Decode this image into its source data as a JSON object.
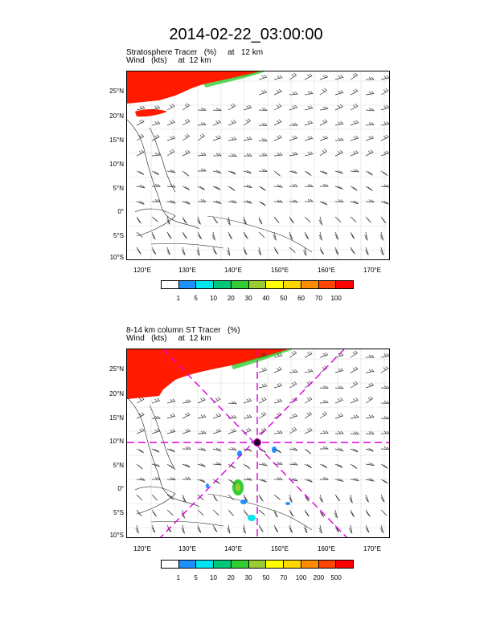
{
  "title": "2014-02-22_03:00:00",
  "panel1": {
    "line1": "Stratosphere Tracer   (%)     at   12 km",
    "line2": "Wind   (kts)     at  12 km",
    "colorbar": {
      "labels": [
        "1",
        "5",
        "10",
        "20",
        "30",
        "40",
        "50",
        "60",
        "70",
        "100"
      ],
      "colors": [
        "#ffffff",
        "#1e90ff",
        "#00e5ee",
        "#00c878",
        "#32cd32",
        "#9acd32",
        "#ffff00",
        "#ffd700",
        "#ff8c00",
        "#ff4500",
        "#ff0000"
      ]
    }
  },
  "panel2": {
    "line1": "8-14 km column ST Tracer   (%)",
    "line2": "Wind   (kts)     at  12 km",
    "colorbar": {
      "labels": [
        "1",
        "5",
        "10",
        "20",
        "30",
        "50",
        "70",
        "100",
        "200",
        "500"
      ],
      "colors": [
        "#ffffff",
        "#1e90ff",
        "#00e5ee",
        "#00c878",
        "#32cd32",
        "#9acd32",
        "#ffff00",
        "#ffd700",
        "#ff8c00",
        "#ff4500",
        "#ff0000"
      ]
    },
    "marker_icon": "storm-center-icon",
    "guide_color": "#dd00dd"
  },
  "axes": {
    "lat_labels": [
      "25°N",
      "20°N",
      "15°N",
      "10°N",
      "5°N",
      "0°",
      "5°S",
      "10°S"
    ],
    "lon_labels": [
      "120°E",
      "130°E",
      "140°E",
      "150°E",
      "160°E",
      "170°E"
    ]
  }
}
